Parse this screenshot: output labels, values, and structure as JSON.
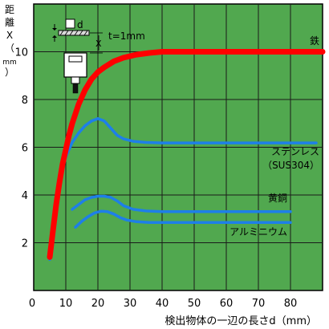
{
  "chart_data": {
    "type": "line",
    "xlabel": "検出物体の一辺の長さd（mm）",
    "ylabel_chars": [
      "距",
      "離",
      "X",
      "（",
      "mm",
      "）"
    ],
    "xlim": [
      0,
      90
    ],
    "ylim": [
      0,
      12
    ],
    "x_ticks": [
      0,
      10,
      20,
      30,
      40,
      50,
      60,
      70,
      80
    ],
    "y_ticks": [
      2,
      4,
      6,
      8,
      10
    ],
    "grid": true,
    "background_color": "#51a84f",
    "grid_color": "#1a1a1a",
    "series": [
      {
        "name": "鉄",
        "color": "#ff0000",
        "width": "thick",
        "label_lines": [
          "鉄"
        ],
        "points": [
          [
            5,
            1.4
          ],
          [
            6,
            2.5
          ],
          [
            7,
            3.6
          ],
          [
            8,
            4.5
          ],
          [
            9,
            5.3
          ],
          [
            10,
            5.9
          ],
          [
            11,
            6.5
          ],
          [
            12,
            7.0
          ],
          [
            14,
            7.8
          ],
          [
            16,
            8.4
          ],
          [
            18,
            8.85
          ],
          [
            20,
            9.15
          ],
          [
            22,
            9.35
          ],
          [
            25,
            9.6
          ],
          [
            28,
            9.75
          ],
          [
            32,
            9.88
          ],
          [
            36,
            9.95
          ],
          [
            40,
            10.0
          ],
          [
            90,
            10.0
          ]
        ]
      },
      {
        "name": "ステンレス（SUS304）",
        "color": "#1e7fe8",
        "width": "normal",
        "label_lines": [
          "ステンレス",
          "（SUS304）"
        ],
        "points": [
          [
            5,
            1.3
          ],
          [
            6,
            2.4
          ],
          [
            7,
            3.5
          ],
          [
            8,
            4.4
          ],
          [
            9,
            5.1
          ],
          [
            10,
            5.6
          ],
          [
            12,
            6.2
          ],
          [
            14,
            6.6
          ],
          [
            16,
            6.9
          ],
          [
            18,
            7.1
          ],
          [
            20,
            7.2
          ],
          [
            22,
            7.1
          ],
          [
            24,
            6.8
          ],
          [
            26,
            6.5
          ],
          [
            28,
            6.35
          ],
          [
            31,
            6.25
          ],
          [
            35,
            6.2
          ],
          [
            40,
            6.18
          ],
          [
            88,
            6.18
          ]
        ]
      },
      {
        "name": "黄銅",
        "color": "#1e7fe8",
        "width": "normal",
        "label_lines": [
          "黄銅"
        ],
        "points": [
          [
            12,
            3.4
          ],
          [
            14,
            3.6
          ],
          [
            16,
            3.8
          ],
          [
            18,
            3.9
          ],
          [
            20,
            3.95
          ],
          [
            22,
            3.95
          ],
          [
            24,
            3.9
          ],
          [
            26,
            3.75
          ],
          [
            28,
            3.55
          ],
          [
            31,
            3.4
          ],
          [
            35,
            3.33
          ],
          [
            40,
            3.3
          ],
          [
            80,
            3.3
          ]
        ]
      },
      {
        "name": "アルミニウム",
        "color": "#1e7fe8",
        "width": "normal",
        "label_lines": [
          "アルミニウム"
        ],
        "points": [
          [
            13,
            2.65
          ],
          [
            15,
            2.9
          ],
          [
            17,
            3.1
          ],
          [
            19,
            3.25
          ],
          [
            21,
            3.32
          ],
          [
            23,
            3.3
          ],
          [
            25,
            3.2
          ],
          [
            27,
            3.05
          ],
          [
            29,
            2.95
          ],
          [
            32,
            2.88
          ],
          [
            36,
            2.85
          ],
          [
            80,
            2.85
          ]
        ]
      }
    ]
  },
  "inset": {
    "distance_label": "t=1mm",
    "d_label": "d",
    "x_label": "X"
  }
}
